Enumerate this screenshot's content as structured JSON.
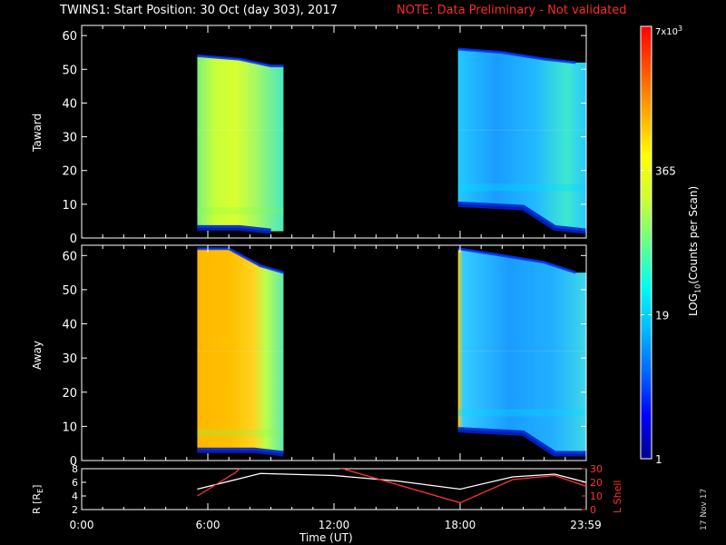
{
  "title": {
    "main": "TWINS1: Start Position: 30 Oct (day 303), 2017",
    "note": "NOTE: Data Preliminary - Not validated",
    "note_color": "#ff2a2a"
  },
  "date_stamp": "17 Nov 17",
  "chart_data": [
    {
      "type": "heatmap",
      "panel": "top",
      "ylabel": "Taward",
      "ylim": [
        0,
        63
      ],
      "yticks": [
        "0",
        "10",
        "20",
        "30",
        "40",
        "50",
        "60"
      ],
      "xlim_hours": [
        0,
        24
      ],
      "data_intervals_hours": [
        [
          5.5,
          9.6
        ],
        [
          17.9,
          23.98
        ]
      ],
      "upper_edge": [
        [
          5.5,
          54
        ],
        [
          7.5,
          53
        ],
        [
          9.0,
          51
        ],
        [
          9.6,
          51
        ],
        [
          17.9,
          56
        ],
        [
          20.0,
          55
        ],
        [
          22.0,
          53
        ],
        [
          23.5,
          52
        ]
      ],
      "lower_edge": [
        [
          5.5,
          3
        ],
        [
          7.5,
          3
        ],
        [
          9.0,
          2
        ],
        [
          17.9,
          10
        ],
        [
          21.0,
          9
        ],
        [
          22.5,
          3
        ],
        [
          23.98,
          2
        ]
      ],
      "intensity_note": "yellow-green early block, cyan/blue late block"
    },
    {
      "type": "heatmap",
      "panel": "bottom",
      "ylabel": "Away",
      "ylim": [
        0,
        63
      ],
      "yticks": [
        "0",
        "10",
        "20",
        "30",
        "40",
        "50",
        "60"
      ],
      "xlim_hours": [
        0,
        24
      ],
      "data_intervals_hours": [
        [
          5.5,
          9.6
        ],
        [
          17.9,
          23.98
        ]
      ],
      "upper_edge": [
        [
          5.5,
          62
        ],
        [
          7.0,
          62
        ],
        [
          8.5,
          57
        ],
        [
          9.6,
          55
        ],
        [
          17.9,
          62
        ],
        [
          20.0,
          60
        ],
        [
          22.0,
          58
        ],
        [
          23.5,
          55
        ]
      ],
      "lower_edge": [
        [
          5.5,
          3
        ],
        [
          8.2,
          3
        ],
        [
          9.6,
          2
        ],
        [
          17.9,
          9
        ],
        [
          21.0,
          8
        ],
        [
          22.5,
          2
        ],
        [
          23.98,
          2
        ]
      ],
      "intensity_note": "orange early block, cyan/blue late block"
    },
    {
      "type": "line",
      "panel": "orbit",
      "ylabel_left": "R [RE]",
      "ylabel_right": "L Shell",
      "yticks_left": [
        "2",
        "4",
        "6",
        "8"
      ],
      "yticks_right": [
        "0",
        "10",
        "20",
        "30"
      ],
      "ylim_left": [
        2,
        8
      ],
      "ylim_right": [
        0,
        30
      ],
      "series": [
        {
          "name": "R [RE]",
          "color": "#ffffff",
          "x": [
            5.5,
            8.5,
            12.0,
            15.0,
            18.0,
            20.5,
            22.5,
            24.0
          ],
          "y": [
            5.0,
            7.3,
            7.0,
            6.2,
            5.0,
            6.8,
            7.2,
            6.0
          ]
        },
        {
          "name": "L Shell",
          "color": "#ff3333",
          "x": [
            5.5,
            7.3,
            7.6,
            12.0,
            12.4,
            18.0,
            20.5,
            22.5,
            24.0
          ],
          "y": [
            10,
            27,
            31,
            31,
            30,
            5,
            22,
            25,
            17
          ]
        }
      ]
    }
  ],
  "colorbar": {
    "label": "LOG10(Counts per Scan)",
    "ticks": [
      "1",
      "19",
      "365",
      "7x10^3"
    ],
    "tick_label_max": "7x10",
    "tick_label_max_exp": "3",
    "colors": [
      "#00008b",
      "#0000ff",
      "#0066ff",
      "#00bbff",
      "#00ffee",
      "#66ff88",
      "#ccff33",
      "#ffff00",
      "#ffaa00",
      "#ff5500",
      "#ff0000"
    ]
  },
  "x_axis": {
    "label": "Time (UT)",
    "ticks": [
      "0:00",
      "6:00",
      "12:00",
      "18:00",
      "23:59"
    ]
  },
  "labels": {
    "top_panel": "Taward",
    "bottom_panel": "Away",
    "orbit_left": "R [R",
    "orbit_left_sub": "E",
    "orbit_left_end": "]",
    "orbit_right": "L Shell",
    "cb_pre": "LOG",
    "cb_sub": "10",
    "cb_post": "(Counts per Scan)"
  }
}
